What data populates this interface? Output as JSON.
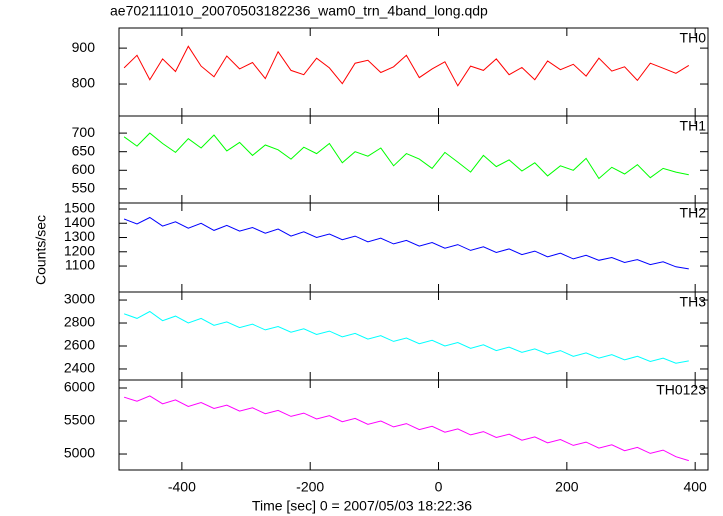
{
  "chart_data": {
    "type": "line",
    "title": "ae702111010_20070503182236_wam0_trn_4band_long.qdp",
    "xlabel": "Time [sec] 0 = 2007/05/03 18:22:36",
    "ylabel": "Counts/sec",
    "xlim": [
      -498,
      420
    ],
    "xticks": [
      -400,
      -200,
      0,
      200,
      400
    ],
    "x": [
      -490,
      -470,
      -450,
      -430,
      -410,
      -390,
      -370,
      -350,
      -330,
      -310,
      -290,
      -270,
      -250,
      -230,
      -210,
      -190,
      -170,
      -150,
      -130,
      -110,
      -90,
      -70,
      -50,
      -30,
      -10,
      10,
      30,
      50,
      70,
      90,
      110,
      130,
      150,
      170,
      190,
      210,
      230,
      250,
      270,
      290,
      310,
      330,
      350,
      370,
      390
    ],
    "panels": [
      {
        "name": "TH0",
        "color": "#ff0000",
        "ylim": [
          711,
          956
        ],
        "yticks": [
          800,
          900
        ],
        "values": [
          845,
          880,
          812,
          870,
          835,
          905,
          850,
          820,
          878,
          842,
          860,
          815,
          890,
          838,
          826,
          872,
          845,
          801,
          858,
          866,
          832,
          848,
          880,
          818,
          842,
          862,
          795,
          850,
          838,
          870,
          826,
          846,
          812,
          864,
          840,
          855,
          822,
          872,
          836,
          848,
          810,
          858,
          844,
          830,
          852
        ]
      },
      {
        "name": "TH1",
        "color": "#00ff00",
        "ylim": [
          512,
          746
        ],
        "yticks": [
          550,
          600,
          650,
          700
        ],
        "values": [
          690,
          665,
          700,
          672,
          648,
          685,
          660,
          695,
          652,
          675,
          640,
          668,
          655,
          630,
          662,
          645,
          672,
          620,
          650,
          638,
          660,
          612,
          645,
          630,
          605,
          648,
          622,
          595,
          640,
          610,
          628,
          598,
          620,
          585,
          612,
          600,
          632,
          578,
          608,
          590,
          615,
          580,
          605,
          595,
          588
        ]
      },
      {
        "name": "TH2",
        "color": "#0000ff",
        "ylim": [
          918,
          1542
        ],
        "yticks": [
          1100,
          1200,
          1300,
          1400,
          1500
        ],
        "values": [
          1430,
          1395,
          1440,
          1380,
          1410,
          1365,
          1400,
          1350,
          1385,
          1345,
          1370,
          1330,
          1360,
          1310,
          1340,
          1300,
          1325,
          1285,
          1310,
          1270,
          1295,
          1255,
          1280,
          1240,
          1265,
          1225,
          1250,
          1210,
          1235,
          1195,
          1220,
          1180,
          1205,
          1165,
          1190,
          1150,
          1175,
          1140,
          1160,
          1125,
          1145,
          1110,
          1130,
          1095,
          1080
        ]
      },
      {
        "name": "TH3",
        "color": "#00ffff",
        "ylim": [
          2304,
          3070
        ],
        "yticks": [
          2400,
          2600,
          2800,
          3000
        ],
        "values": [
          2880,
          2840,
          2900,
          2820,
          2860,
          2800,
          2840,
          2780,
          2810,
          2760,
          2790,
          2740,
          2770,
          2720,
          2750,
          2700,
          2730,
          2680,
          2710,
          2660,
          2690,
          2640,
          2670,
          2620,
          2650,
          2600,
          2630,
          2580,
          2610,
          2560,
          2590,
          2545,
          2575,
          2530,
          2560,
          2510,
          2540,
          2495,
          2525,
          2480,
          2510,
          2465,
          2495,
          2450,
          2470
        ]
      },
      {
        "name": "TH0123",
        "color": "#ff00ff",
        "ylim": [
          4758,
          6121
        ],
        "yticks": [
          5000,
          5500,
          6000
        ],
        "values": [
          5860,
          5800,
          5880,
          5760,
          5820,
          5720,
          5780,
          5690,
          5740,
          5650,
          5700,
          5610,
          5660,
          5570,
          5620,
          5530,
          5580,
          5490,
          5540,
          5450,
          5500,
          5410,
          5460,
          5370,
          5420,
          5330,
          5380,
          5290,
          5340,
          5250,
          5300,
          5210,
          5260,
          5170,
          5220,
          5130,
          5180,
          5090,
          5140,
          5050,
          5100,
          5010,
          5060,
          4960,
          4900
        ]
      }
    ]
  }
}
